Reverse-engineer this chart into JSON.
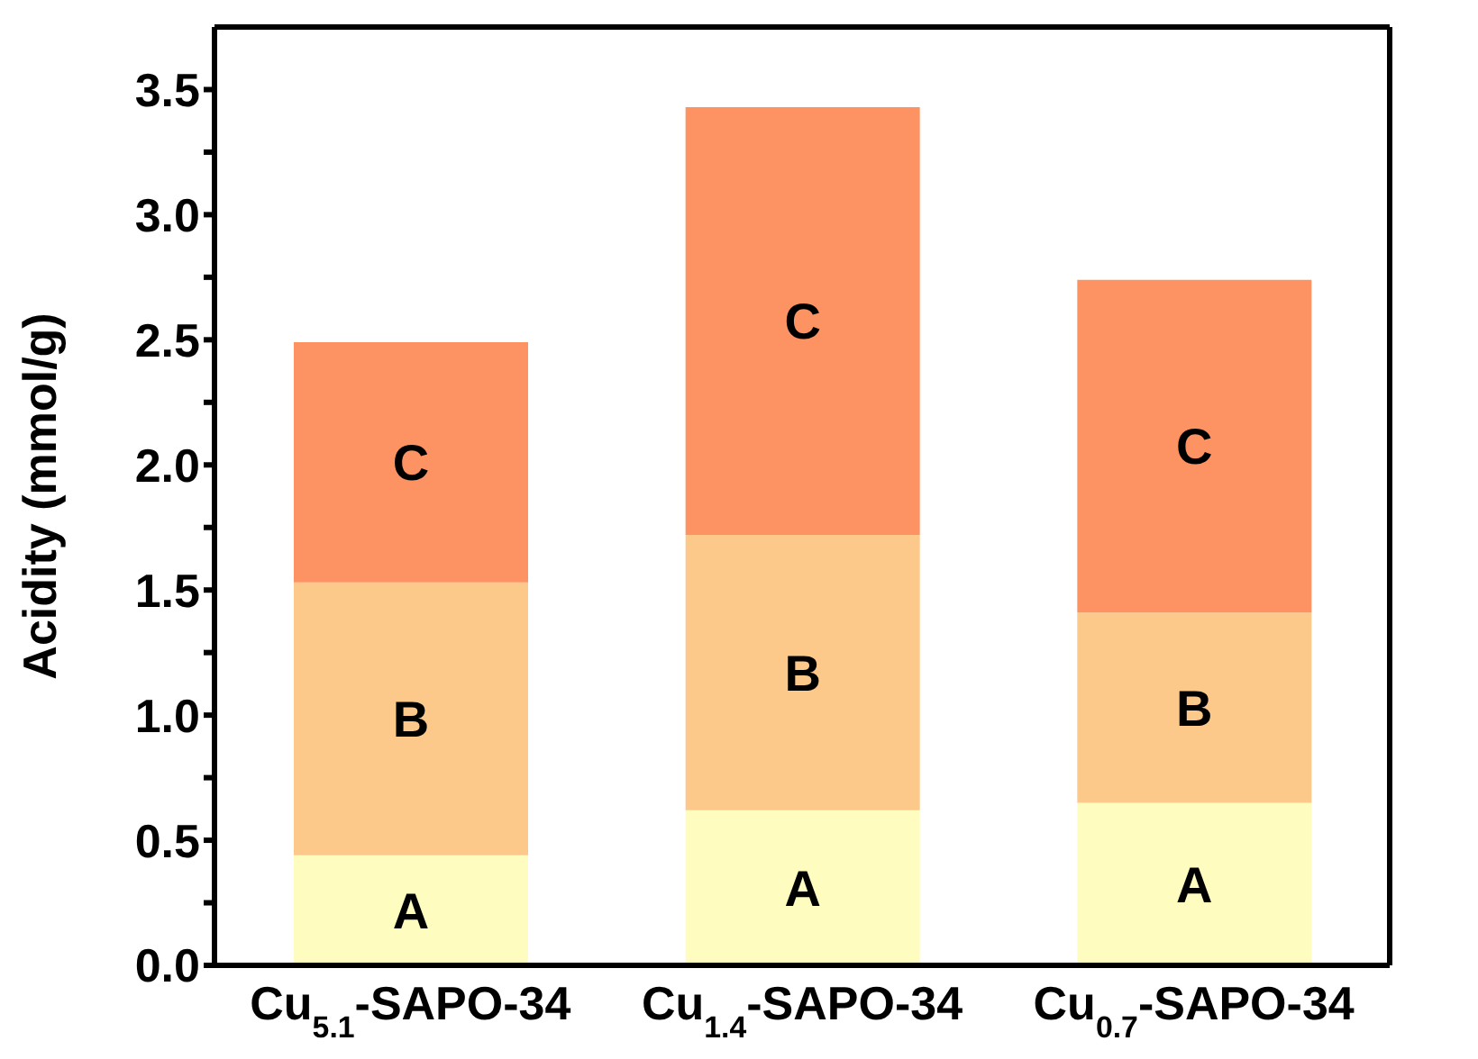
{
  "chart_data": {
    "type": "bar",
    "stacked": true,
    "ylabel": "Acidity (mmol/g)",
    "categories": [
      "Cu$_{5.1}$-SAPO-34",
      "Cu$_{1.4}$-SAPO-34",
      "Cu$_{0.7}$-SAPO-34"
    ],
    "series": [
      {
        "name": "A",
        "color": "#fefcbf",
        "values": [
          0.44,
          0.62,
          0.65
        ]
      },
      {
        "name": "B",
        "color": "#fcc98b",
        "values": [
          1.09,
          1.1,
          0.76
        ]
      },
      {
        "name": "C",
        "color": "#fd9262",
        "values": [
          0.96,
          1.71,
          1.33
        ]
      }
    ],
    "ylim": [
      0,
      3.75
    ],
    "yticks": [
      {
        "value": 0,
        "label": "0.0"
      },
      {
        "value": 0.25,
        "label": null
      },
      0.5,
      {
        "value": 0.75,
        "label": null
      },
      {
        "value": 1,
        "label": "1.0"
      },
      {
        "value": 1.25,
        "label": null
      },
      1.5,
      {
        "value": 1.75,
        "label": null
      },
      {
        "value": 2,
        "label": "2.0"
      },
      {
        "value": 2.25,
        "label": null
      },
      2.5,
      {
        "value": 2.75,
        "label": null
      },
      {
        "value": 3,
        "label": "3.0"
      },
      {
        "value": 3.25,
        "label": null
      },
      3.5
    ],
    "grid": false,
    "legend": false
  }
}
